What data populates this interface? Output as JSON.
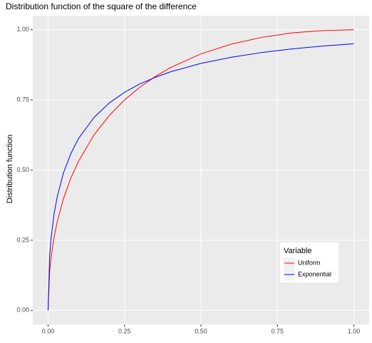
{
  "chart_data": {
    "type": "line",
    "title": "Distribution function of the square of the difference",
    "y_label": "Distribution function",
    "x": [
      0,
      0.005,
      0.01,
      0.02,
      0.03,
      0.05,
      0.075,
      0.1,
      0.15,
      0.2,
      0.25,
      0.3,
      0.35,
      0.4,
      0.5,
      0.6,
      0.7,
      0.8,
      0.9,
      1.0
    ],
    "series": [
      {
        "name": "Uniform",
        "color": "#ff0000",
        "values": [
          0,
          0.136,
          0.19,
          0.263,
          0.316,
          0.397,
          0.473,
          0.532,
          0.625,
          0.694,
          0.75,
          0.795,
          0.833,
          0.865,
          0.914,
          0.949,
          0.973,
          0.989,
          0.997,
          1.0
        ]
      },
      {
        "name": "Exponential",
        "color": "#0000ff",
        "values": [
          0,
          0.191,
          0.259,
          0.346,
          0.405,
          0.489,
          0.56,
          0.613,
          0.687,
          0.739,
          0.777,
          0.807,
          0.83,
          0.85,
          0.88,
          0.902,
          0.919,
          0.932,
          0.942,
          0.95
        ]
      }
    ],
    "legend_title": "Variable",
    "legend_position": "bottom-right",
    "xlim": [
      -0.05,
      1.05
    ],
    "ylim": [
      -0.05,
      1.05
    ],
    "xticks": [
      {
        "value": 0,
        "label": "0.00"
      },
      {
        "value": 0.25,
        "label": "0.25"
      },
      {
        "value": 0.5,
        "label": "0.50"
      },
      {
        "value": 0.75,
        "label": "0.75"
      },
      {
        "value": 1,
        "label": "1.00"
      }
    ],
    "yticks": [
      {
        "value": 0,
        "label": "0.00"
      },
      {
        "value": 0.25,
        "label": "0.25"
      },
      {
        "value": 0.5,
        "label": "0.50"
      },
      {
        "value": 0.75,
        "label": "0.75"
      },
      {
        "value": 1,
        "label": "1.00"
      }
    ],
    "grid": true
  }
}
